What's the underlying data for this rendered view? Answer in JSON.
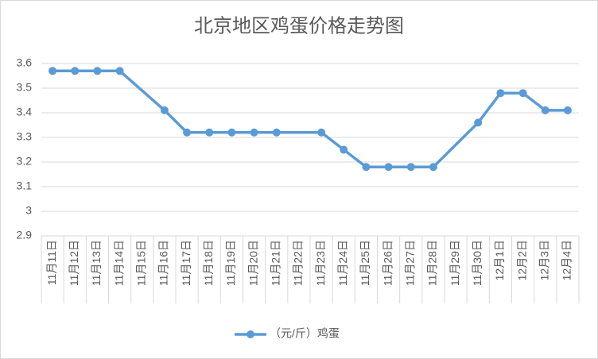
{
  "chart_data": {
    "type": "line",
    "title": "北京地区鸡蛋价格走势图",
    "categories": [
      "11月11日",
      "11月12日",
      "11月13日",
      "11月14日",
      "11月15日",
      "11月16日",
      "11月17日",
      "11月18日",
      "11月19日",
      "11月20日",
      "11月21日",
      "11月22日",
      "11月23日",
      "11月24日",
      "11月25日",
      "11月26日",
      "11月27日",
      "11月28日",
      "11月29日",
      "11月30日",
      "12月1日",
      "12月2日",
      "12月3日",
      "12月4日"
    ],
    "series": [
      {
        "name": "（元/斤）鸡蛋",
        "color": "#5b9bd5",
        "values": [
          3.57,
          3.57,
          3.57,
          3.57,
          null,
          3.41,
          3.32,
          3.32,
          3.32,
          3.32,
          3.32,
          null,
          3.32,
          3.25,
          3.18,
          3.18,
          3.18,
          3.18,
          null,
          3.36,
          3.48,
          3.48,
          3.41,
          3.41
        ]
      }
    ],
    "ylim": [
      2.9,
      3.6
    ],
    "yticks": [
      2.9,
      3,
      3.1,
      3.2,
      3.3,
      3.4,
      3.5,
      3.6
    ],
    "grid": true,
    "legend": "bottom"
  }
}
